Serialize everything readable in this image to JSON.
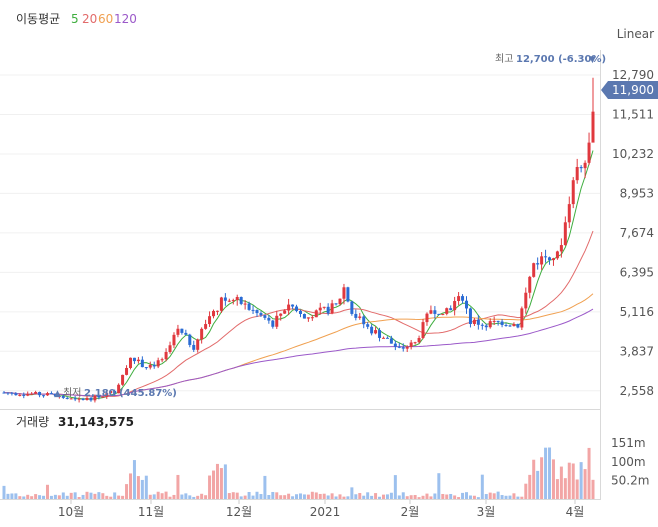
{
  "chart_data": {
    "type": "candlestick",
    "legend": {
      "title": "이동평균",
      "items": [
        {
          "label": "5",
          "color": "#3fae3f"
        },
        {
          "label": "20",
          "color": "#e26b6b"
        },
        {
          "label": "60",
          "color": "#f0a050"
        },
        {
          "label": "120",
          "color": "#9b59c9"
        }
      ]
    },
    "scale_label": "Linear",
    "price_axis": {
      "ticks": [
        12790,
        11511,
        10232,
        8953,
        7674,
        6395,
        5116,
        3837,
        2558
      ],
      "labels": [
        "12,790",
        "11,511",
        "10,232",
        "8,953",
        "7,674",
        "6,395",
        "5,116",
        "3,837",
        "2,558"
      ],
      "range": [
        2000,
        13600
      ]
    },
    "current_price": {
      "value": 11900,
      "label": "11,900"
    },
    "high_marker": {
      "value": 12700,
      "label": "최고",
      "value_text": "12,700 (-6.30%)"
    },
    "low_marker": {
      "value": 2180,
      "label": "최저",
      "value_text": "2,180 (445.87%)"
    },
    "x_axis_labels": [
      "10월",
      "11월",
      "12월",
      "2021",
      "2월",
      "3월",
      "4월"
    ],
    "volume": {
      "title": "거래량",
      "value_text": "31,143,575",
      "ticks": [
        151,
        100,
        50.2
      ],
      "tick_labels": [
        "151m",
        "100m",
        "50.2m"
      ],
      "range": [
        0,
        180
      ]
    },
    "colors": {
      "up": "#e0383e",
      "down": "#2a6bd4",
      "volume_up": "#f2a5a5",
      "volume_down": "#9cc0ee",
      "accent": "#5b78b0"
    }
  }
}
